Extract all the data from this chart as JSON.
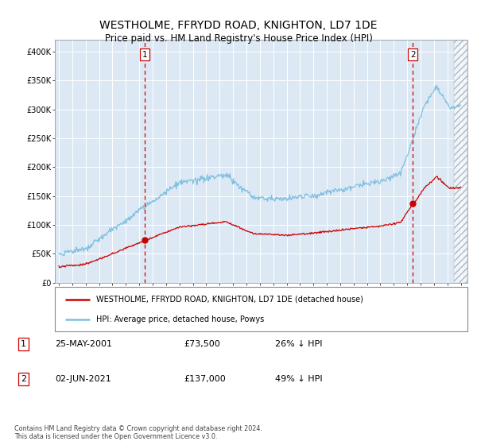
{
  "title": "WESTHOLME, FFRYDD ROAD, KNIGHTON, LD7 1DE",
  "subtitle": "Price paid vs. HM Land Registry's House Price Index (HPI)",
  "title_fontsize": 10,
  "subtitle_fontsize": 8.5,
  "background_color": "#ffffff",
  "plot_bg_color": "#dce9f5",
  "grid_color": "#ffffff",
  "hpi_color": "#7fbfdf",
  "price_color": "#cc0000",
  "vline_color": "#cc0000",
  "ylim": [
    0,
    420000
  ],
  "yticks": [
    0,
    50000,
    100000,
    150000,
    200000,
    250000,
    300000,
    350000,
    400000
  ],
  "ytick_labels": [
    "£0",
    "£50K",
    "£100K",
    "£150K",
    "£200K",
    "£250K",
    "£300K",
    "£350K",
    "£400K"
  ],
  "sale1_date_x": 2001.39,
  "sale1_price": 73500,
  "sale2_date_x": 2021.42,
  "sale2_price": 137000,
  "sale1_label": "25-MAY-2001",
  "sale1_price_str": "£73,500",
  "sale1_pct": "26% ↓ HPI",
  "sale2_label": "02-JUN-2021",
  "sale2_price_str": "£137,000",
  "sale2_pct": "49% ↓ HPI",
  "legend_line1": "WESTHOLME, FFRYDD ROAD, KNIGHTON, LD7 1DE (detached house)",
  "legend_line2": "HPI: Average price, detached house, Powys",
  "footnote": "Contains HM Land Registry data © Crown copyright and database right 2024.\nThis data is licensed under the Open Government Licence v3.0.",
  "hatch_xlim_start": 2024.5,
  "xmin": 1994.7,
  "xmax": 2025.5
}
